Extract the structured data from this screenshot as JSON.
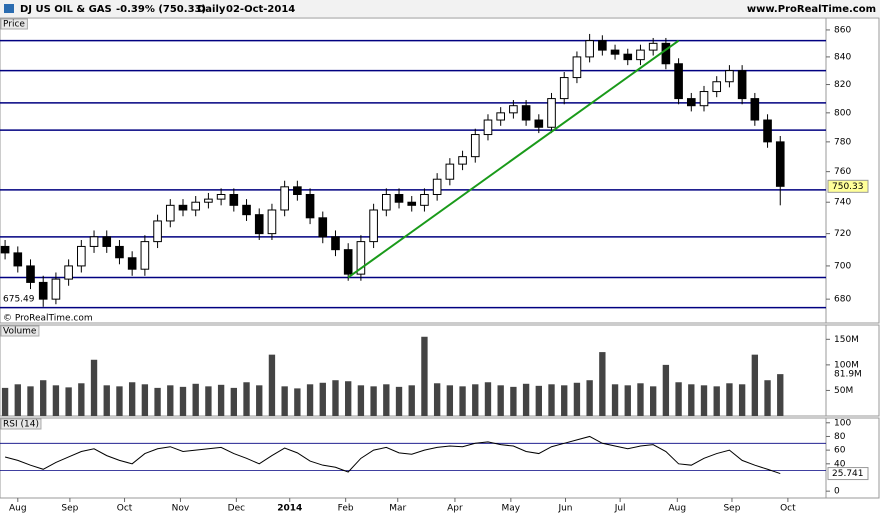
{
  "header": {
    "symbol": "DJ US OIL & GAS",
    "change": "-0.39% (750.33)",
    "period": "Daily",
    "date": "02-Oct-2014",
    "site": "www.ProRealTime.com"
  },
  "chart_data": [
    {
      "type": "candlestick",
      "label": "Price",
      "credit": "© ProRealTime.com",
      "x": [
        0,
        1,
        2,
        3,
        4,
        5,
        6,
        7,
        8,
        9,
        10,
        11,
        12,
        13,
        14,
        15,
        16,
        17,
        18,
        19,
        20,
        21,
        22,
        23,
        24,
        25,
        26,
        27,
        28,
        29,
        30,
        31,
        32,
        33,
        34,
        35,
        36,
        37,
        38,
        39,
        40,
        41,
        42,
        43,
        44,
        45,
        46,
        47,
        48,
        49,
        50,
        51,
        52,
        53,
        54,
        55,
        56,
        57,
        58,
        59,
        60,
        61
      ],
      "open": [
        712,
        708,
        700,
        690,
        680,
        692,
        700,
        712,
        718,
        712,
        705,
        698,
        715,
        728,
        738,
        735,
        740,
        742,
        745,
        738,
        732,
        720,
        735,
        750,
        745,
        730,
        718,
        710,
        695,
        715,
        735,
        745,
        740,
        738,
        745,
        755,
        765,
        770,
        785,
        795,
        800,
        805,
        795,
        790,
        810,
        825,
        840,
        852,
        845,
        842,
        838,
        845,
        850,
        835,
        810,
        805,
        815,
        822,
        830,
        810,
        795,
        780
      ],
      "high": [
        716,
        712,
        704,
        694,
        696,
        704,
        716,
        722,
        722,
        716,
        709,
        719,
        732,
        742,
        742,
        744,
        746,
        749,
        749,
        742,
        736,
        739,
        754,
        754,
        749,
        734,
        722,
        714,
        719,
        739,
        749,
        749,
        744,
        749,
        759,
        769,
        774,
        789,
        799,
        804,
        809,
        809,
        799,
        814,
        829,
        844,
        857,
        856,
        849,
        846,
        849,
        854,
        854,
        839,
        814,
        819,
        826,
        834,
        834,
        814,
        799,
        784
      ],
      "low": [
        704,
        696,
        686,
        675.49,
        677,
        688,
        696,
        708,
        708,
        701,
        694,
        694,
        711,
        724,
        731,
        731,
        736,
        738,
        734,
        728,
        716,
        716,
        731,
        741,
        726,
        714,
        706,
        691,
        691,
        711,
        731,
        736,
        734,
        734,
        741,
        751,
        761,
        766,
        781,
        791,
        796,
        791,
        786,
        786,
        806,
        821,
        836,
        841,
        838,
        834,
        834,
        841,
        831,
        806,
        801,
        801,
        811,
        818,
        806,
        791,
        776,
        738
      ],
      "close": [
        708,
        700,
        690,
        680,
        692,
        700,
        712,
        718,
        712,
        705,
        698,
        715,
        728,
        738,
        735,
        740,
        742,
        745,
        738,
        732,
        720,
        735,
        750,
        745,
        730,
        718,
        710,
        695,
        715,
        735,
        745,
        740,
        738,
        745,
        755,
        765,
        770,
        785,
        795,
        800,
        805,
        795,
        790,
        810,
        825,
        840,
        852,
        845,
        842,
        838,
        845,
        850,
        835,
        810,
        805,
        815,
        822,
        830,
        810,
        795,
        780,
        750.33
      ],
      "xlim": [
        -0.4,
        64.6
      ],
      "ylim": [
        666,
        869
      ],
      "ylog": true,
      "yticks": [
        680,
        700,
        720,
        740,
        760,
        780,
        800,
        820,
        840,
        860
      ],
      "last_value_label": "750.33",
      "low_label": "675.49",
      "levels": [
        852,
        830,
        807,
        788,
        748,
        718,
        693,
        675
      ],
      "level_color": "#000080",
      "trendline": {
        "x": [
          27,
          53
        ],
        "y": [
          693,
          852
        ],
        "color": "#1a9a1a"
      }
    },
    {
      "type": "bar",
      "label": "Volume",
      "x": [
        0,
        1,
        2,
        3,
        4,
        5,
        6,
        7,
        8,
        9,
        10,
        11,
        12,
        13,
        14,
        15,
        16,
        17,
        18,
        19,
        20,
        21,
        22,
        23,
        24,
        25,
        26,
        27,
        28,
        29,
        30,
        31,
        32,
        33,
        34,
        35,
        36,
        37,
        38,
        39,
        40,
        41,
        42,
        43,
        44,
        45,
        46,
        47,
        48,
        49,
        50,
        51,
        52,
        53,
        54,
        55,
        56,
        57,
        58,
        59,
        60,
        61
      ],
      "values": [
        55,
        62,
        58,
        70,
        60,
        56,
        64,
        110,
        60,
        58,
        66,
        62,
        55,
        60,
        57,
        63,
        58,
        61,
        55,
        66,
        60,
        120,
        58,
        54,
        62,
        65,
        70,
        68,
        60,
        58,
        62,
        57,
        60,
        155,
        64,
        60,
        58,
        62,
        66,
        60,
        57,
        63,
        59,
        62,
        60,
        65,
        70,
        125,
        62,
        60,
        64,
        58,
        100,
        66,
        62,
        60,
        58,
        64,
        62,
        120,
        70,
        81.9
      ],
      "xlim": [
        -0.4,
        64.6
      ],
      "ylim": [
        0,
        178
      ],
      "yticks": [
        {
          "value": 50,
          "label": "50M"
        },
        {
          "value": 100,
          "label": "100M"
        },
        {
          "value": 150,
          "label": "150M"
        }
      ],
      "last_value_label": "81.9M",
      "color": "#444444"
    },
    {
      "type": "line",
      "label": "RSI (14)",
      "x": [
        0,
        1,
        2,
        3,
        4,
        5,
        6,
        7,
        8,
        9,
        10,
        11,
        12,
        13,
        14,
        15,
        16,
        17,
        18,
        19,
        20,
        21,
        22,
        23,
        24,
        25,
        26,
        27,
        28,
        29,
        30,
        31,
        32,
        33,
        34,
        35,
        36,
        37,
        38,
        39,
        40,
        41,
        42,
        43,
        44,
        45,
        46,
        47,
        48,
        49,
        50,
        51,
        52,
        53,
        54,
        55,
        56,
        57,
        58,
        59,
        60,
        61
      ],
      "values": [
        50,
        45,
        38,
        32,
        42,
        50,
        58,
        62,
        52,
        45,
        40,
        55,
        62,
        65,
        58,
        60,
        62,
        64,
        55,
        48,
        40,
        52,
        63,
        56,
        44,
        38,
        35,
        28,
        48,
        60,
        64,
        56,
        54,
        60,
        64,
        66,
        65,
        70,
        72,
        68,
        66,
        58,
        55,
        65,
        70,
        75,
        80,
        70,
        66,
        62,
        66,
        68,
        58,
        40,
        38,
        48,
        55,
        60,
        45,
        38,
        32,
        25.741
      ],
      "xlim": [
        -0.4,
        64.6
      ],
      "ylim": [
        -10,
        107
      ],
      "yticks": [
        0,
        40,
        60,
        80,
        100
      ],
      "levels": [
        70,
        30
      ],
      "last_value_label": "25.741",
      "color": "#000000",
      "xticks": [
        {
          "value": 1.0,
          "label": "Aug"
        },
        {
          "value": 5.1,
          "label": "Sep"
        },
        {
          "value": 9.4,
          "label": "Oct"
        },
        {
          "value": 13.8,
          "label": "Nov"
        },
        {
          "value": 18.2,
          "label": "Dec"
        },
        {
          "value": 22.4,
          "label": "2014"
        },
        {
          "value": 26.8,
          "label": "Feb"
        },
        {
          "value": 30.9,
          "label": "Mar"
        },
        {
          "value": 35.4,
          "label": "Apr"
        },
        {
          "value": 39.8,
          "label": "May"
        },
        {
          "value": 44.1,
          "label": "Jun"
        },
        {
          "value": 48.4,
          "label": "Jul"
        },
        {
          "value": 52.9,
          "label": "Aug"
        },
        {
          "value": 57.2,
          "label": "Sep"
        },
        {
          "value": 61.6,
          "label": "Oct"
        }
      ]
    }
  ]
}
